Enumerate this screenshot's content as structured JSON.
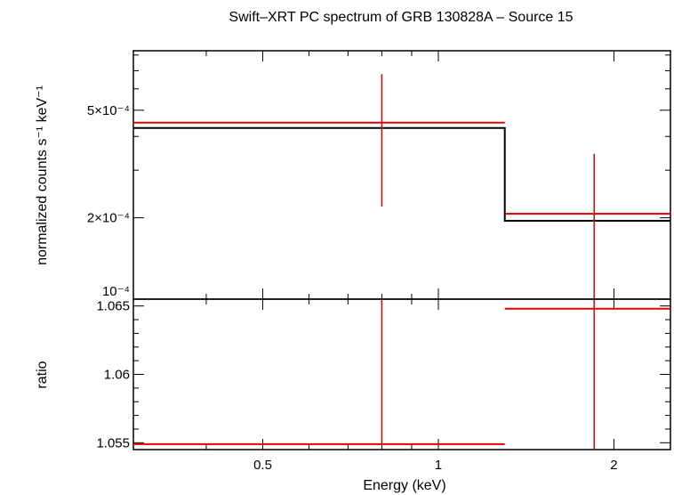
{
  "chart_data": {
    "type": "scatter",
    "title": "Swift–XRT PC spectrum of GRB 130828A – Source 15",
    "xlabel": "Energy (keV)",
    "x_scale": "log",
    "xlim": [
      0.3,
      2.5
    ],
    "x_ticks": [
      {
        "value": 0.5,
        "label": "0.5"
      },
      {
        "value": 1,
        "label": "1"
      },
      {
        "value": 2,
        "label": "2"
      }
    ],
    "panels": [
      {
        "id": "spectrum",
        "ylabel": "normalized counts s⁻¹ keV⁻¹",
        "y_scale": "log",
        "ylim": [
          0.0001,
          0.00083
        ],
        "y_ticks": [
          {
            "value": 0.0001,
            "label": "10⁻⁴"
          },
          {
            "value": 0.0002,
            "label": "2×10⁻⁴"
          },
          {
            "value": 0.0005,
            "label": "5×10⁻⁴"
          }
        ],
        "data": [
          {
            "x_lo": 0.3,
            "x_hi": 1.3,
            "x": 0.8,
            "y": 0.00045,
            "y_lo": 0.00022,
            "y_hi": 0.00068
          },
          {
            "x_lo": 1.3,
            "x_hi": 2.5,
            "x": 1.85,
            "y": 0.000207,
            "y_lo": 0.0001,
            "y_hi": 0.000345
          }
        ],
        "model": [
          {
            "x_lo": 0.3,
            "x_hi": 1.3,
            "y": 0.00043
          },
          {
            "x_lo": 1.3,
            "x_hi": 2.5,
            "y": 0.000195
          }
        ]
      },
      {
        "id": "ratio",
        "ylabel": "ratio",
        "y_scale": "linear",
        "ylim": [
          1.0545,
          1.0655
        ],
        "y_ticks": [
          {
            "value": 1.055,
            "label": "1.055"
          },
          {
            "value": 1.06,
            "label": "1.06"
          },
          {
            "value": 1.065,
            "label": "1.065"
          }
        ],
        "data": [
          {
            "x_lo": 0.3,
            "x_hi": 1.3,
            "x": 0.8,
            "y": 1.0549,
            "y_lo": 1.0549,
            "y_hi": 1.0655
          },
          {
            "x_lo": 1.3,
            "x_hi": 2.5,
            "x": 1.85,
            "y": 1.0648,
            "y_lo": 1.0545,
            "y_hi": 1.0655
          }
        ]
      }
    ],
    "colors": {
      "data": "#e00000",
      "model": "#000000",
      "axes": "#000000"
    }
  }
}
